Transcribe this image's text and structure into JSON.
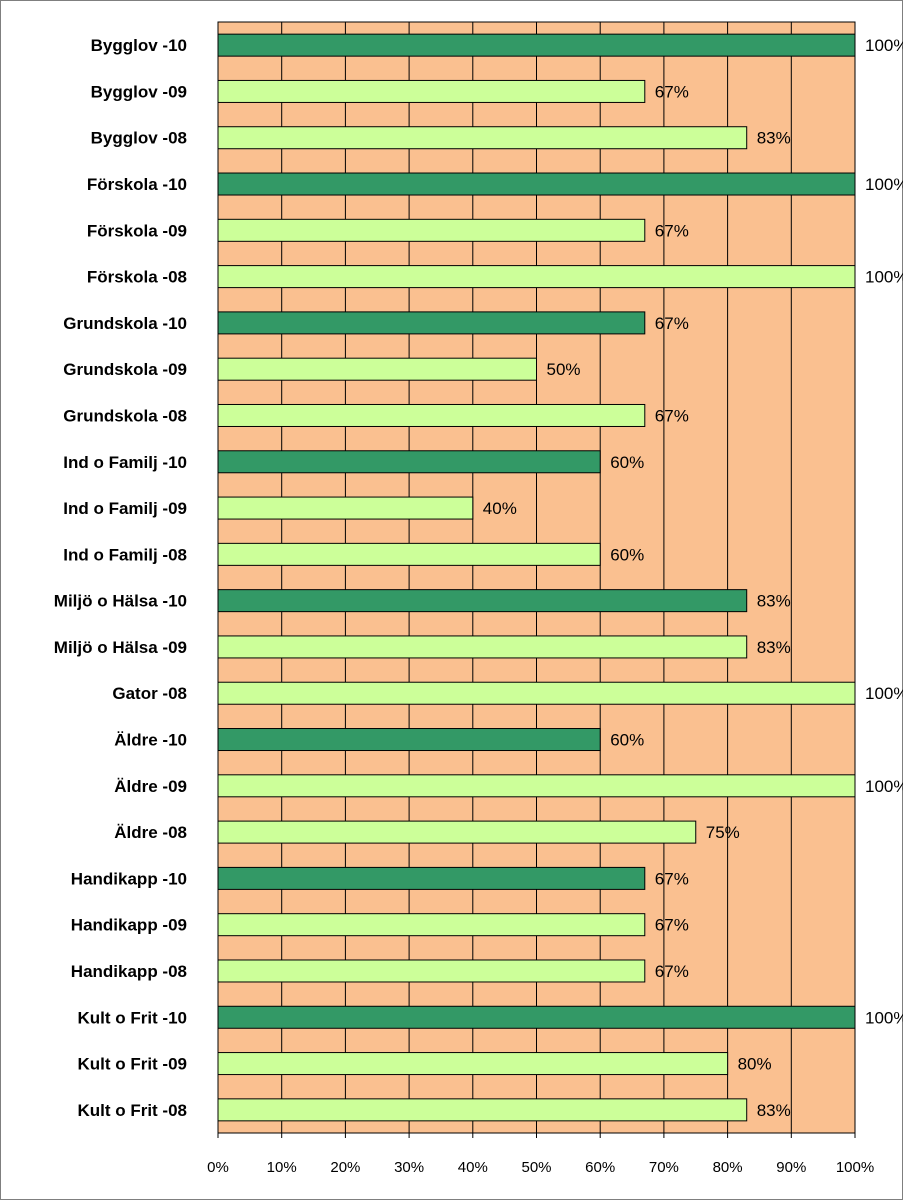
{
  "chart_data": {
    "type": "bar",
    "orientation": "horizontal",
    "categories": [
      "Bygglov -10",
      "Bygglov -09",
      "Bygglov -08",
      "Förskola -10",
      "Förskola -09",
      "Förskola -08",
      "Grundskola -10",
      "Grundskola -09",
      "Grundskola -08",
      "Ind o Familj -10",
      "Ind o Familj -09",
      "Ind o Familj -08",
      "Miljö o Hälsa -10",
      "Miljö o Hälsa -09",
      "Gator -08",
      "Äldre -10",
      "Äldre -09",
      "Äldre -08",
      "Handikapp -10",
      "Handikapp -09",
      "Handikapp -08",
      "Kult o Frit -10",
      "Kult o Frit -09",
      "Kult o Frit -08"
    ],
    "values": [
      100,
      67,
      83,
      100,
      67,
      100,
      67,
      50,
      67,
      60,
      40,
      60,
      83,
      83,
      100,
      60,
      100,
      75,
      67,
      67,
      67,
      100,
      80,
      83
    ],
    "data_labels": [
      "100%",
      "67%",
      "83%",
      "100%",
      "67%",
      "100%",
      "67%",
      "50%",
      "67%",
      "60%",
      "40%",
      "60%",
      "83%",
      "83%",
      "100%",
      "60%",
      "100%",
      "75%",
      "67%",
      "67%",
      "67%",
      "100%",
      "80%",
      "83%"
    ],
    "highlighted": [
      true,
      false,
      false,
      true,
      false,
      false,
      true,
      false,
      false,
      true,
      false,
      false,
      true,
      false,
      false,
      true,
      false,
      false,
      true,
      false,
      false,
      true,
      false,
      false
    ],
    "xlim": [
      0,
      100
    ],
    "x_ticks": [
      "0%",
      "10%",
      "20%",
      "30%",
      "40%",
      "50%",
      "60%",
      "70%",
      "80%",
      "90%",
      "100%"
    ],
    "grid": true,
    "legend": "none",
    "title": "",
    "xlabel": "",
    "ylabel": "",
    "colors": {
      "plot_background": "#fac090",
      "bar_highlight": "#339966",
      "bar_normal": "#ccff99",
      "bar_border": "#000000",
      "gridline": "#000000"
    }
  }
}
